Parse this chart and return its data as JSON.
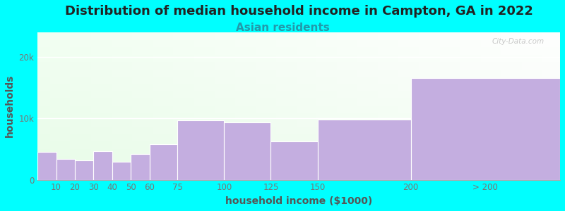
{
  "title": "Distribution of median household income in Campton, GA in 2022",
  "subtitle": "Asian residents",
  "xlabel": "household income ($1000)",
  "ylabel": "households",
  "bg_outer": "#00FFFF",
  "bar_color": "#c4aee0",
  "bar_edge_color": "#ffffff",
  "categories": [
    "10",
    "20",
    "30",
    "40",
    "50",
    "60",
    "75",
    "100",
    "125",
    "150",
    "200",
    "> 200"
  ],
  "left_edges": [
    0,
    10,
    20,
    30,
    40,
    50,
    60,
    75,
    100,
    125,
    150,
    200
  ],
  "widths": [
    10,
    10,
    10,
    10,
    10,
    10,
    15,
    25,
    25,
    25,
    50,
    80
  ],
  "values": [
    4500,
    3400,
    3200,
    4600,
    2900,
    4200,
    5800,
    9700,
    9300,
    6200,
    9800,
    16500
  ],
  "yticks": [
    0,
    10000,
    20000
  ],
  "ytick_labels": [
    "0",
    "10k",
    "20k"
  ],
  "ylim": [
    0,
    24000
  ],
  "xlim": [
    0,
    280
  ],
  "title_fontsize": 13,
  "subtitle_fontsize": 11,
  "axis_label_fontsize": 10,
  "tick_fontsize": 8.5,
  "title_color": "#222222",
  "subtitle_color": "#2299aa",
  "axis_label_color": "#555555",
  "tick_color": "#777777",
  "watermark": "City-Data.com",
  "xtick_positions": [
    10,
    20,
    30,
    40,
    50,
    60,
    75,
    100,
    125,
    150,
    200,
    240
  ],
  "xtick_labels": [
    "10",
    "20",
    "30",
    "40",
    "50",
    "60",
    "75",
    "100",
    "125",
    "150",
    "200",
    "> 200"
  ]
}
